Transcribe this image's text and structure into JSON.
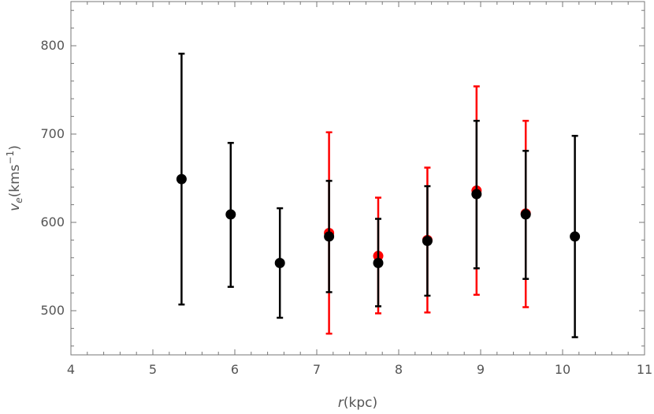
{
  "chart_data": {
    "type": "scatter",
    "xlabel": {
      "var": "r",
      "unit": "(kpc)"
    },
    "ylabel": {
      "var": "v",
      "sub": "e",
      "unit_pre": "(kms",
      "sup": "−1",
      "unit_post": ")"
    },
    "xlim": [
      4,
      11
    ],
    "ylim": [
      450,
      850
    ],
    "x_ticks": [
      4,
      5,
      6,
      7,
      8,
      9,
      10,
      11
    ],
    "y_ticks": [
      500,
      600,
      700,
      800
    ],
    "grid": false,
    "series": [
      {
        "color": "#ff0000",
        "points": [
          {
            "x": 7.15,
            "y": 588,
            "lo": 474,
            "hi": 702
          },
          {
            "x": 7.75,
            "y": 562,
            "lo": 497,
            "hi": 628
          },
          {
            "x": 8.35,
            "y": 580,
            "lo": 498,
            "hi": 662
          },
          {
            "x": 8.95,
            "y": 636,
            "lo": 518,
            "hi": 754
          },
          {
            "x": 9.55,
            "y": 610,
            "lo": 504,
            "hi": 715
          }
        ]
      },
      {
        "color": "#000000",
        "points": [
          {
            "x": 5.35,
            "y": 649,
            "lo": 507,
            "hi": 791
          },
          {
            "x": 5.95,
            "y": 609,
            "lo": 527,
            "hi": 690
          },
          {
            "x": 6.55,
            "y": 554,
            "lo": 492,
            "hi": 616
          },
          {
            "x": 7.15,
            "y": 584,
            "lo": 521,
            "hi": 647
          },
          {
            "x": 7.75,
            "y": 554,
            "lo": 505,
            "hi": 604
          },
          {
            "x": 8.35,
            "y": 579,
            "lo": 517,
            "hi": 641
          },
          {
            "x": 8.95,
            "y": 632,
            "lo": 548,
            "hi": 715
          },
          {
            "x": 9.55,
            "y": 609,
            "lo": 536,
            "hi": 681
          },
          {
            "x": 10.15,
            "y": 584,
            "lo": 470,
            "hi": 698
          }
        ]
      }
    ]
  }
}
